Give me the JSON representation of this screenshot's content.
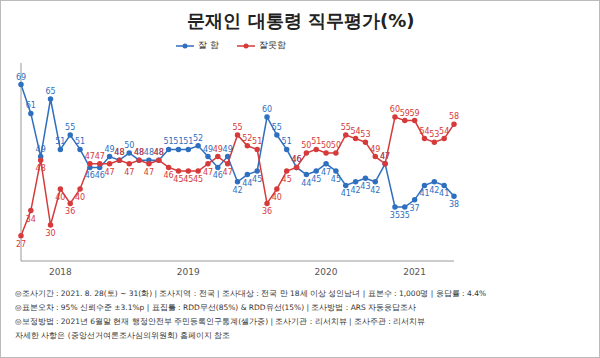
{
  "chart_data": {
    "type": "line",
    "title": "문재인 대통령 직무평가(%)",
    "categories": [
      null,
      null,
      null,
      null,
      "2018",
      null,
      null,
      null,
      null,
      null,
      null,
      null,
      null,
      null,
      null,
      null,
      null,
      "2019",
      null,
      null,
      null,
      null,
      null,
      null,
      null,
      null,
      null,
      null,
      null,
      null,
      null,
      "2020",
      null,
      null,
      null,
      null,
      null,
      null,
      null,
      null,
      "2021",
      null,
      null,
      null,
      null
    ],
    "series": [
      {
        "name": "잘 함",
        "color": "#2f6fbf",
        "marker": "circle",
        "values": [
          69,
          61,
          49,
          65,
          51,
          55,
          51,
          46,
          46,
          49,
          48,
          50,
          48,
          48,
          48,
          51,
          51,
          51,
          52,
          49,
          46,
          49,
          42,
          44,
          45,
          60,
          55,
          51,
          46,
          44,
          45,
          47,
          45,
          41,
          42,
          43,
          42,
          47,
          35,
          35,
          37,
          41,
          42,
          41,
          38
        ]
      },
      {
        "name": "잘못함",
        "color": "#d63a3a",
        "marker": "circle",
        "values": [
          27,
          34,
          48,
          30,
          40,
          36,
          40,
          47,
          47,
          47,
          48,
          47,
          48,
          47,
          48,
          46,
          45,
          45,
          45,
          47,
          49,
          47,
          55,
          52,
          51,
          36,
          40,
          45,
          46,
          50,
          51,
          50,
          50,
          55,
          54,
          53,
          49,
          47,
          60,
          59,
          59,
          54,
          53,
          54,
          58
        ]
      }
    ],
    "ylim": [
      20,
      75
    ],
    "yticks": [],
    "data_labels": true,
    "tick_labels": "x",
    "legend": "top",
    "notes": [
      "◎조사기간 : 2021. 8. 28(토) ~ 31(화) | 조사지역 : 전국 | 조사대상 : 전국 만 18세 이상 성인남녀 | 표본수 : 1,000명 | 응답률 : 4.4%",
      "◎표본오차 : 95% 신뢰수준 ±3.1%p | 표집틀 : RDD무선(85%) & RDD유선(15%) | 조사방법 : ARS 자동응답조사",
      "◎보정방법 : 2021년 6월말 현재 행정안전부 주민등록인구통계(셀가중) | 조사기관 : 리서치뷰 | 조사주관 : 리서치뷰",
      "자세한 사항은 (중앙선거여론조사심의위원회) 홈페이지 참조"
    ]
  }
}
